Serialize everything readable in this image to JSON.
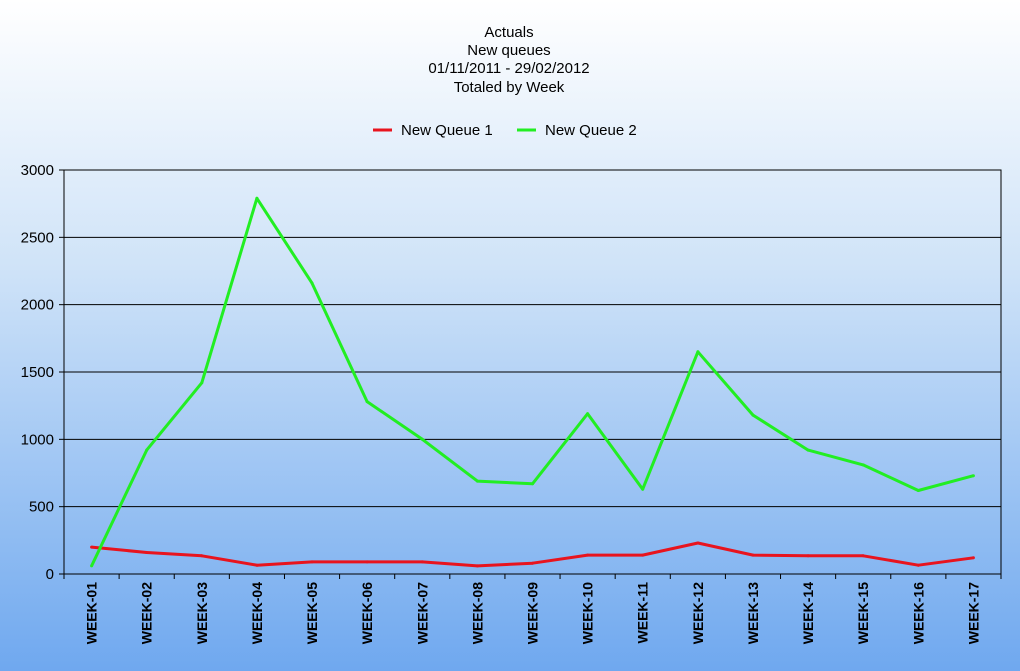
{
  "chart_data": {
    "type": "line",
    "title_lines": [
      "Actuals",
      "New queues",
      "01/11/2011 - 29/02/2012",
      "Totaled by Week"
    ],
    "xlabel": "",
    "ylabel": "",
    "categories": [
      "WEEK-01",
      "WEEK-02",
      "WEEK-03",
      "WEEK-04",
      "WEEK-05",
      "WEEK-06",
      "WEEK-07",
      "WEEK-08",
      "WEEK-09",
      "WEEK-10",
      "WEEK-11",
      "WEEK-12",
      "WEEK-13",
      "WEEK-14",
      "WEEK-15",
      "WEEK-16",
      "WEEK-17"
    ],
    "ylim": [
      0,
      3000
    ],
    "yticks": [
      0,
      500,
      1000,
      1500,
      2000,
      2500,
      3000
    ],
    "grid": true,
    "legend_position": "top-center",
    "series": [
      {
        "name": "New Queue 1",
        "color": "#e8141e",
        "values": [
          200,
          160,
          135,
          65,
          90,
          90,
          90,
          60,
          80,
          140,
          140,
          230,
          140,
          135,
          135,
          65,
          120
        ]
      },
      {
        "name": "New Queue 2",
        "color": "#22ee22",
        "values": [
          60,
          920,
          1420,
          2790,
          2160,
          1280,
          1000,
          690,
          670,
          1190,
          630,
          1650,
          1180,
          920,
          810,
          620,
          730
        ]
      }
    ]
  },
  "colors": {
    "plot_border": "#000000",
    "gridline": "#000000"
  }
}
